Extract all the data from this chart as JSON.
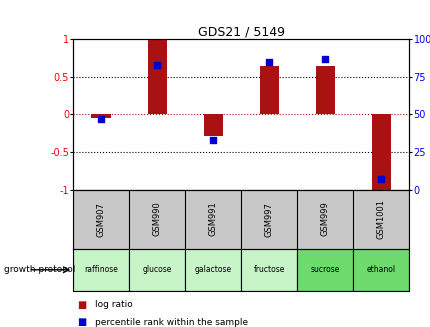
{
  "title": "GDS21 / 5149",
  "samples": [
    "GSM907",
    "GSM990",
    "GSM991",
    "GSM997",
    "GSM999",
    "GSM1001"
  ],
  "log_ratios": [
    -0.05,
    1.0,
    -0.28,
    0.65,
    0.65,
    -1.02
  ],
  "percentile_ranks": [
    47,
    83,
    33,
    85,
    87,
    7
  ],
  "protocols": [
    "raffinose",
    "glucose",
    "galactose",
    "fructose",
    "sucrose",
    "ethanol"
  ],
  "protocol_colors": [
    "#c8f5c8",
    "#c8f5c8",
    "#c8f5c8",
    "#c8f5c8",
    "#6fdb6f",
    "#6fdb6f"
  ],
  "bar_color": "#aa1111",
  "dot_color": "#0000cc",
  "ylim_left": [
    -1.0,
    1.0
  ],
  "ylim_right": [
    0,
    100
  ],
  "yticks_left": [
    -1,
    -0.5,
    0,
    0.5,
    1
  ],
  "yticks_right": [
    0,
    25,
    50,
    75,
    100
  ],
  "sample_bg_color": "#c8c8c8",
  "bar_width": 0.35,
  "figsize": [
    4.31,
    3.27
  ],
  "dpi": 100
}
